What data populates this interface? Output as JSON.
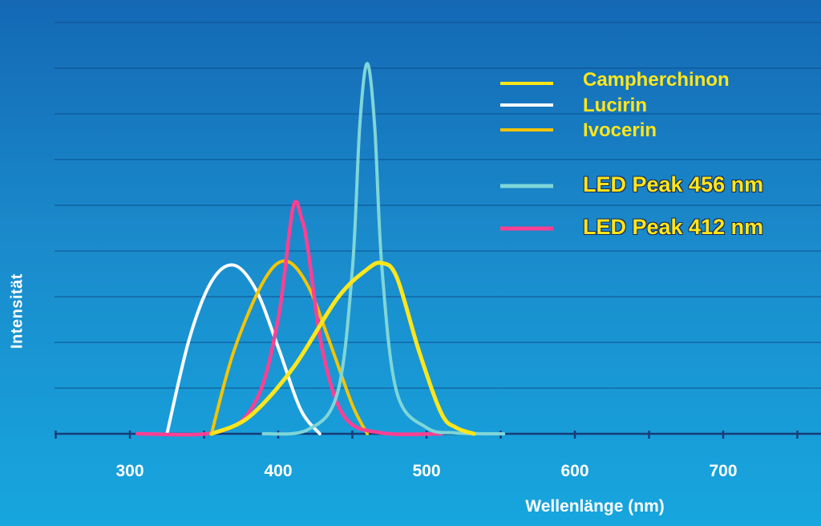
{
  "chart_data": {
    "type": "line",
    "title": "",
    "xlabel": "Wellenlänge (nm)",
    "ylabel": "Intensität",
    "xlim": [
      250,
      765
    ],
    "ylim": [
      0,
      10
    ],
    "x_ticks": [
      300,
      400,
      500,
      600,
      700
    ],
    "grid": true,
    "legend_position": "top-right",
    "series": [
      {
        "name": "Campherchinon",
        "color": "#ffe61a",
        "x": [
          355,
          380,
          410,
          440,
          460,
          470,
          480,
          495,
          510,
          520,
          532
        ],
        "y": [
          0,
          0.4,
          1.6,
          3.3,
          4.0,
          4.15,
          3.8,
          2.0,
          0.5,
          0.15,
          0
        ]
      },
      {
        "name": "Lucirin",
        "color": "#ffffff",
        "x": [
          325,
          340,
          355,
          370,
          385,
          400,
          415,
          428
        ],
        "y": [
          0,
          2.3,
          3.7,
          4.1,
          3.5,
          2.1,
          0.6,
          0
        ]
      },
      {
        "name": "Ivocerin",
        "color": "#f5c400",
        "x": [
          355,
          370,
          390,
          405,
          420,
          435,
          450,
          460
        ],
        "y": [
          0,
          2.0,
          3.7,
          4.2,
          3.6,
          2.2,
          0.7,
          0
        ]
      },
      {
        "name": "LED Peak 456 nm",
        "color": "#7fd6d8",
        "x": [
          390,
          420,
          440,
          450,
          455,
          460,
          465,
          470,
          480,
          500,
          520,
          552
        ],
        "y": [
          0,
          0.1,
          1.0,
          4.0,
          7.5,
          9.0,
          7.5,
          4.0,
          1.0,
          0.15,
          0.02,
          0
        ]
      },
      {
        "name": "LED Peak 412 nm",
        "color": "#ff3f93",
        "x": [
          305,
          360,
          385,
          400,
          410,
          416,
          420,
          430,
          445,
          470,
          510
        ],
        "y": [
          0,
          0.05,
          0.8,
          2.8,
          5.5,
          5.2,
          4.5,
          2.0,
          0.4,
          0.02,
          0
        ]
      }
    ]
  }
}
